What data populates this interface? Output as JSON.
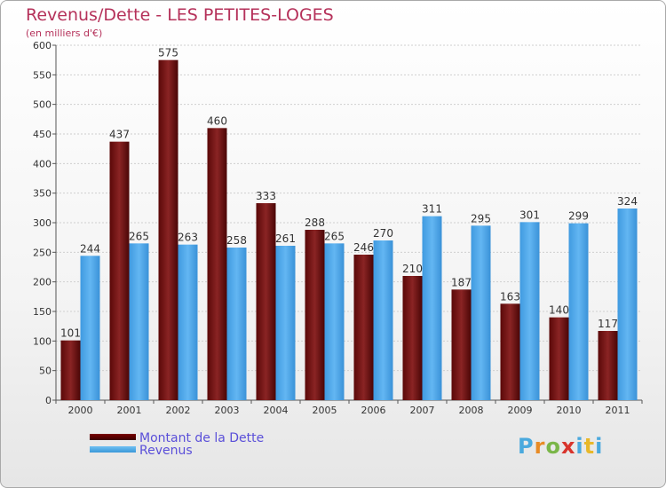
{
  "header": {
    "title": "Revenus/Dette - LES PETITES-LOGES",
    "subtitle": "(en milliers d'€)"
  },
  "legend": {
    "debt_label": "Montant de la Dette",
    "revenue_label": "Revenus"
  },
  "logo": {
    "text": "Proxiti"
  },
  "colors": {
    "debt": "#7a1a1a",
    "revenue": "#4aa3e6",
    "title": "#b5315a",
    "legend_text": "#5a4fd9"
  },
  "chart_data": {
    "type": "bar",
    "title": "Revenus/Dette - LES PETITES-LOGES",
    "subtitle": "(en milliers d'€)",
    "categories": [
      "2000",
      "2001",
      "2002",
      "2003",
      "2004",
      "2005",
      "2006",
      "2007",
      "2008",
      "2009",
      "2010",
      "2011"
    ],
    "series": [
      {
        "name": "Montant de la Dette",
        "values": [
          101,
          437,
          575,
          460,
          333,
          288,
          246,
          210,
          187,
          163,
          140,
          117
        ]
      },
      {
        "name": "Revenus",
        "values": [
          244,
          265,
          263,
          258,
          261,
          265,
          270,
          311,
          295,
          301,
          299,
          324
        ]
      }
    ],
    "ylim": [
      0,
      600
    ],
    "yticks": [
      0,
      50,
      100,
      150,
      200,
      250,
      300,
      350,
      400,
      450,
      500,
      550,
      600
    ],
    "grid": true,
    "legend_position": "bottom-left"
  }
}
